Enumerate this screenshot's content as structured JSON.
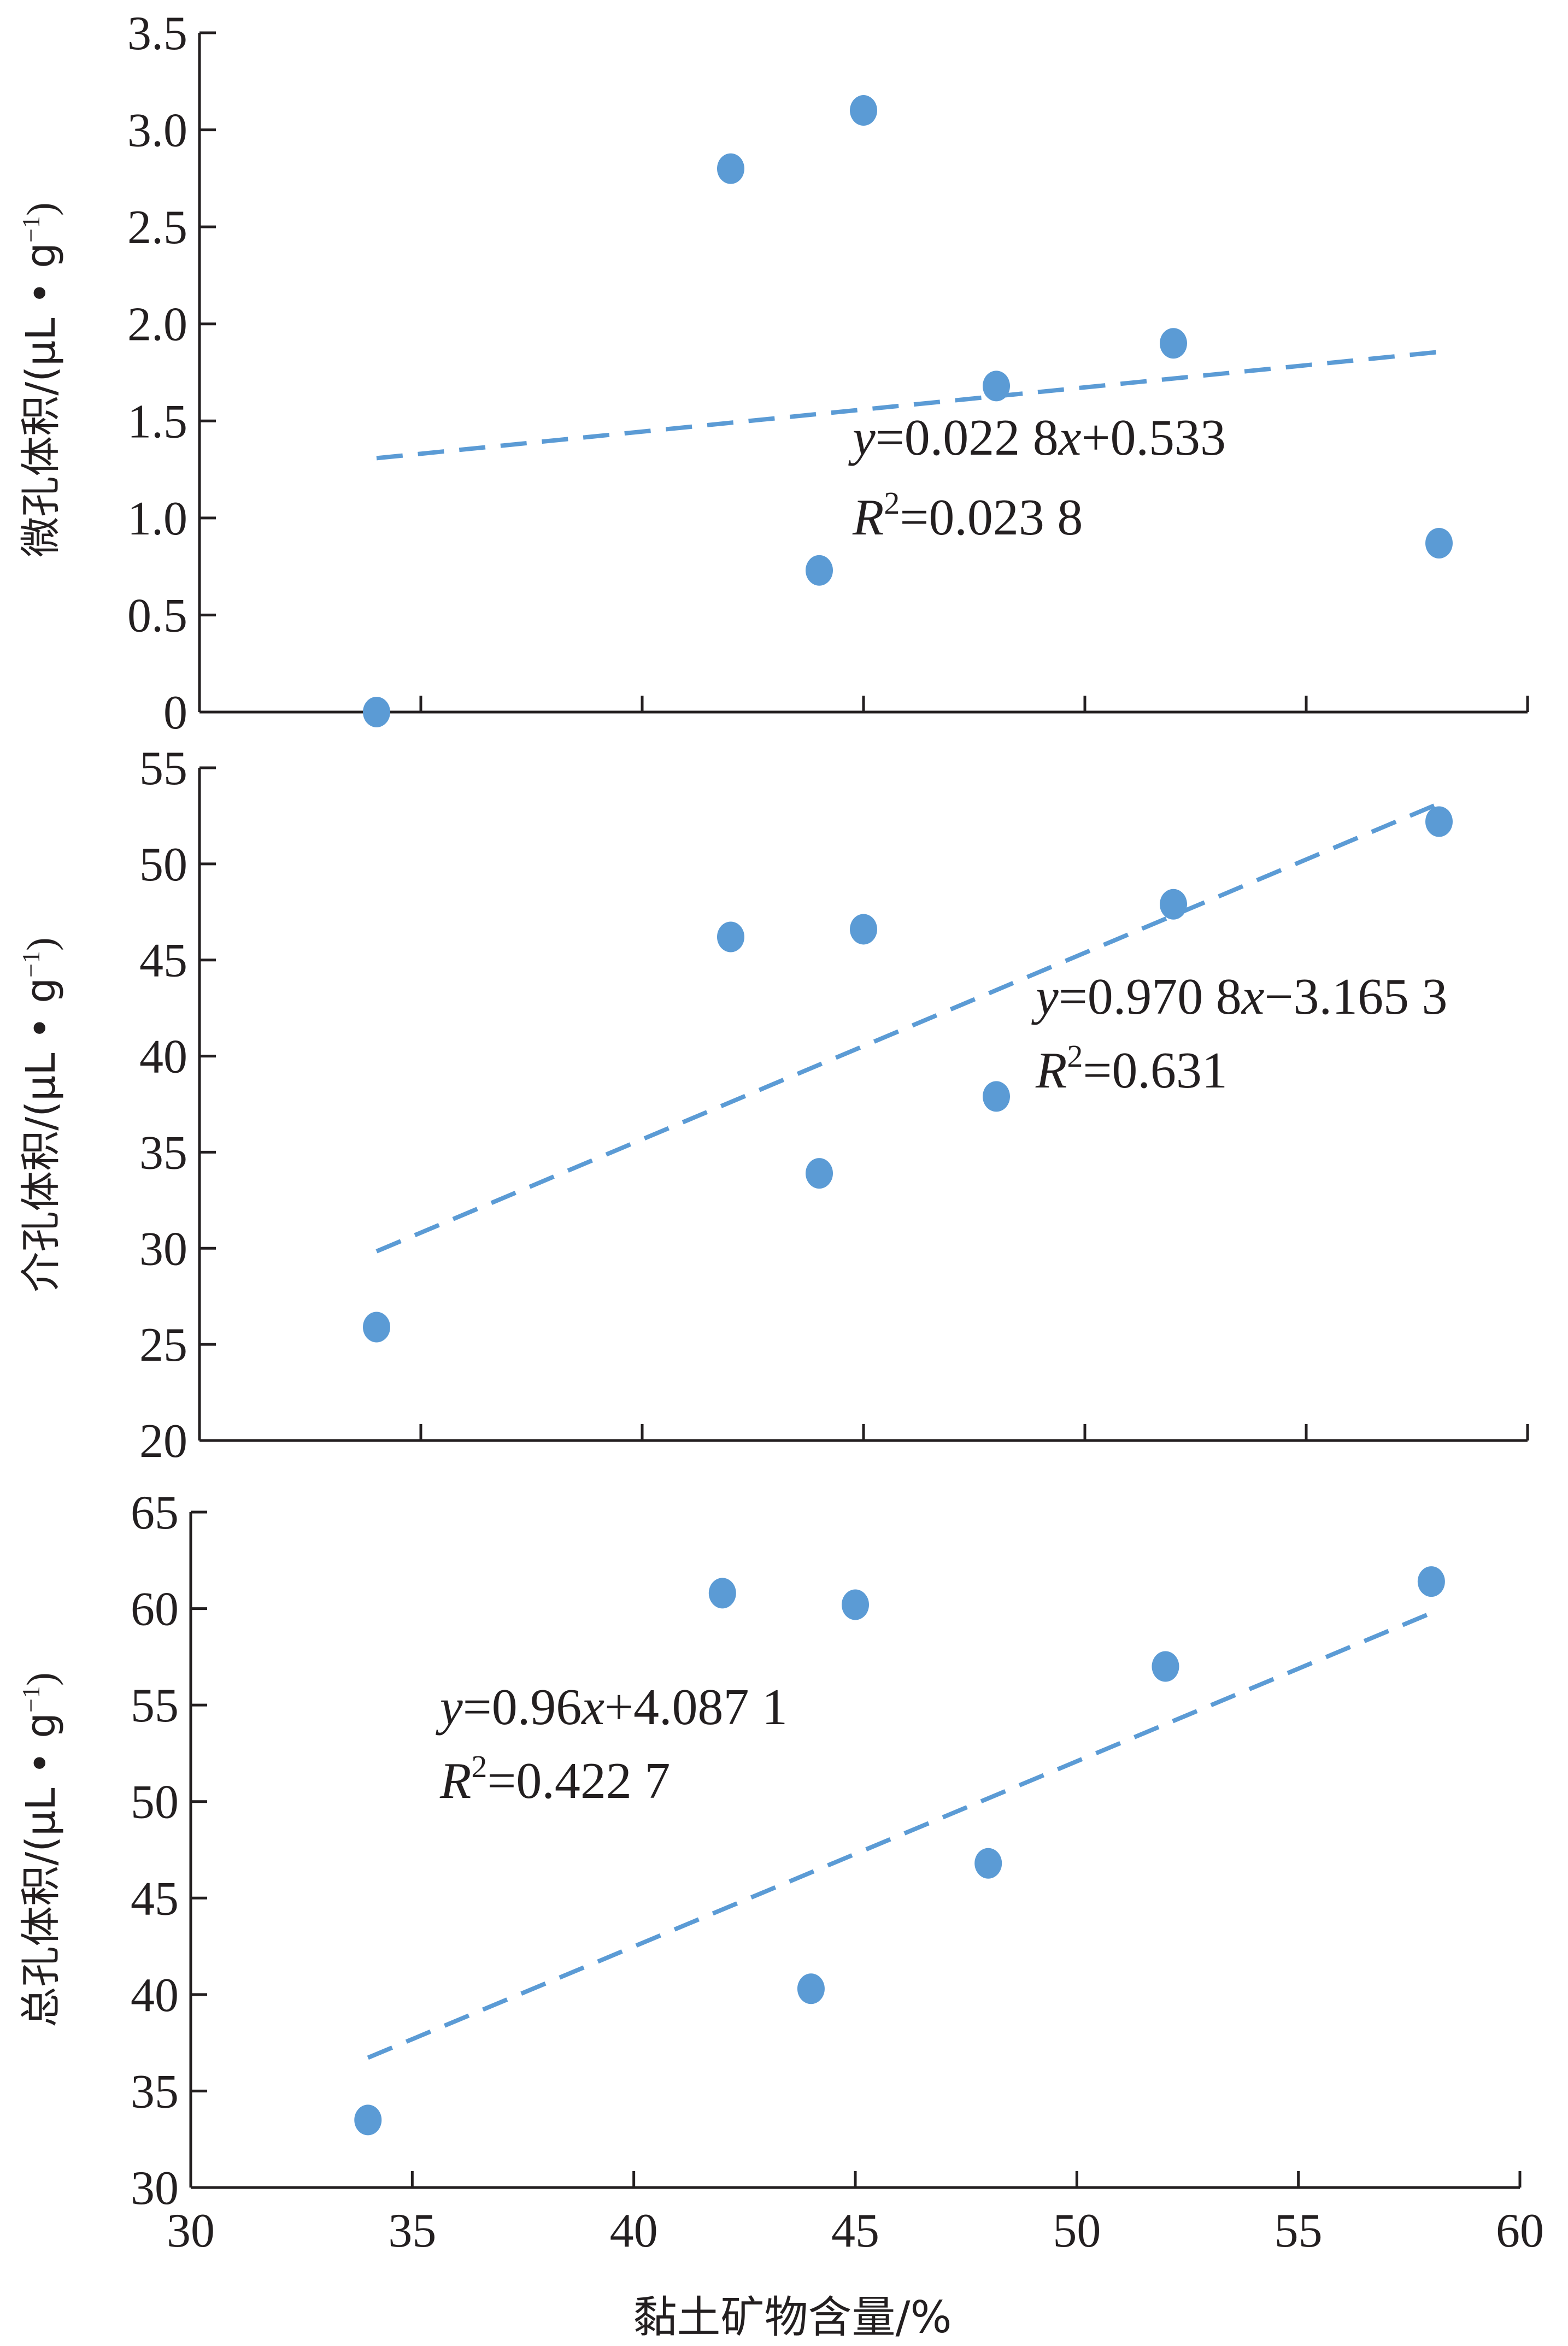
{
  "chart_data": [
    {
      "type": "scatter",
      "panel": "top",
      "ylabel": "微孔体积/(μL • g⁻¹)",
      "ylabel_main": "微孔体积/(μL • g",
      "ylabel_sup": "−1",
      "ylabel_close": ")",
      "ylim": [
        0,
        3.5
      ],
      "yticks": [
        0,
        0.5,
        1.0,
        1.5,
        2.0,
        2.5,
        3.0,
        3.5
      ],
      "ytick_labels": [
        "0",
        "0.5",
        "1.0",
        "1.5",
        "2.0",
        "2.5",
        "3.0",
        "3.5"
      ],
      "xlim": [
        30,
        60
      ],
      "xticks": [
        30,
        35,
        40,
        45,
        50,
        55,
        60
      ],
      "points": [
        {
          "x": 34,
          "y": 0
        },
        {
          "x": 42,
          "y": 2.8
        },
        {
          "x": 44,
          "y": 0.73
        },
        {
          "x": 45,
          "y": 3.1
        },
        {
          "x": 48,
          "y": 1.68
        },
        {
          "x": 52,
          "y": 1.9
        },
        {
          "x": 58,
          "y": 0.87
        }
      ],
      "trendline": {
        "slope": 0.0228,
        "intercept": 0.533,
        "x_range": [
          34,
          58
        ]
      },
      "equation": {
        "y": "y",
        "eq1": "=0.022 8",
        "x": "x",
        "eq2": "+0.533"
      },
      "r2": {
        "r": "R",
        "sup": "2",
        "val": "=0.023 8"
      },
      "colors": {
        "point": "#5b9bd5",
        "trend": "#5b9bd5",
        "axis": "#231f20"
      }
    },
    {
      "type": "scatter",
      "panel": "middle",
      "ylabel": "介孔体积/(μL • g⁻¹)",
      "ylabel_main": "介孔体积/(μL • g",
      "ylabel_sup": "−1",
      "ylabel_close": ")",
      "ylim": [
        20,
        55
      ],
      "yticks": [
        20,
        25,
        30,
        35,
        40,
        45,
        50,
        55
      ],
      "ytick_labels": [
        "20",
        "25",
        "30",
        "35",
        "40",
        "45",
        "50",
        "55"
      ],
      "xlim": [
        30,
        60
      ],
      "xticks": [
        30,
        35,
        40,
        45,
        50,
        55,
        60
      ],
      "points": [
        {
          "x": 34,
          "y": 25.9
        },
        {
          "x": 42,
          "y": 46.2
        },
        {
          "x": 44,
          "y": 33.9
        },
        {
          "x": 45,
          "y": 46.6
        },
        {
          "x": 48,
          "y": 37.9
        },
        {
          "x": 52,
          "y": 47.9
        },
        {
          "x": 58,
          "y": 52.2
        }
      ],
      "trendline": {
        "slope": 0.9708,
        "intercept": -3.1653,
        "x_range": [
          34,
          58
        ]
      },
      "equation": {
        "y": "y",
        "eq1": "=0.970 8",
        "x": "x",
        "eq2": "−3.165 3"
      },
      "r2": {
        "r": "R",
        "sup": "2",
        "val": "=0.631"
      },
      "colors": {
        "point": "#5b9bd5",
        "trend": "#5b9bd5",
        "axis": "#231f20"
      }
    },
    {
      "type": "scatter",
      "panel": "bottom",
      "ylabel": "总孔体积/(μL • g⁻¹)",
      "ylabel_main": "总孔体积/(μL • g",
      "ylabel_sup": "−1",
      "ylabel_close": ")",
      "xlabel": "黏土矿物含量/%",
      "ylim": [
        30,
        65
      ],
      "yticks": [
        30,
        35,
        40,
        45,
        50,
        55,
        60,
        65
      ],
      "ytick_labels": [
        "30",
        "35",
        "40",
        "45",
        "50",
        "55",
        "60",
        "65"
      ],
      "xlim": [
        30,
        60
      ],
      "xticks": [
        30,
        35,
        40,
        45,
        50,
        55,
        60
      ],
      "xtick_labels": [
        "30",
        "35",
        "40",
        "45",
        "50",
        "55",
        "60"
      ],
      "points": [
        {
          "x": 34,
          "y": 33.5
        },
        {
          "x": 42,
          "y": 60.8
        },
        {
          "x": 44,
          "y": 40.3
        },
        {
          "x": 45,
          "y": 60.2
        },
        {
          "x": 48,
          "y": 46.8
        },
        {
          "x": 52,
          "y": 57.0
        },
        {
          "x": 58,
          "y": 61.4
        }
      ],
      "trendline": {
        "slope": 0.96,
        "intercept": 4.0871,
        "x_range": [
          34,
          58
        ]
      },
      "equation": {
        "y": "y",
        "eq1": "=0.96",
        "x": "x",
        "eq2": "+4.087 1"
      },
      "r2": {
        "r": "R",
        "sup": "2",
        "val": "=0.422 7"
      },
      "colors": {
        "point": "#5b9bd5",
        "trend": "#5b9bd5",
        "axis": "#231f20"
      }
    }
  ]
}
